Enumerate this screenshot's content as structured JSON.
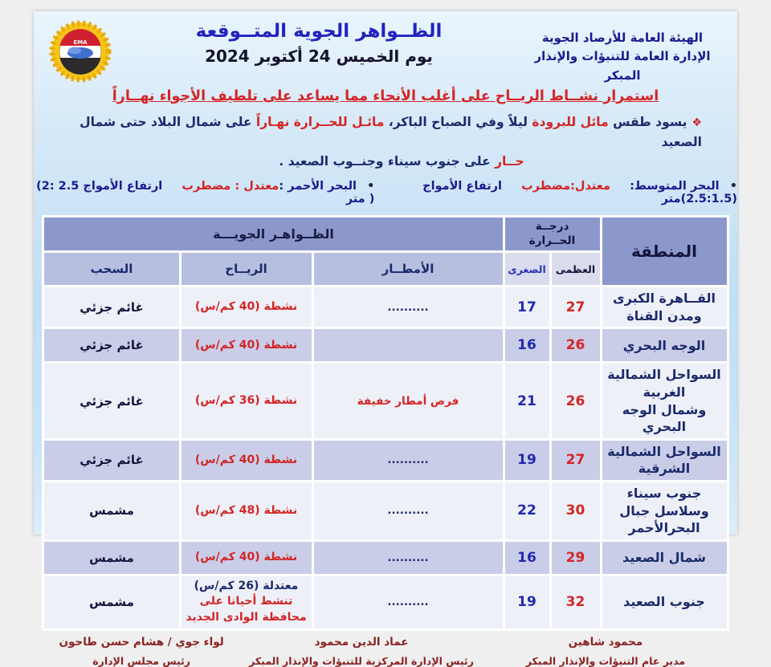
{
  "header": {
    "agency_line1": "الهيئة العامة للأرصاد الجوية",
    "agency_line2": "الإدارة العامة للتنبؤات والإنذار المبكر",
    "title": "الظــواهر الجوية المتــوقعة",
    "date": "يوم  الخميس 24 أكتوبر 2024",
    "logo_text": "EMA"
  },
  "headline": "استمرار نشــاط الريــاح على أغلب الأنحاء مما يساعد على تلطيف الأجواء نهــاراً",
  "summary": {
    "bullet": "❖",
    "seg1": "يسود طقس ",
    "seg2": "مائل للبرودة ",
    "seg3": "ليلاً وفي الصباح الباكر، ",
    "seg4": "مائـل للحــرارة نهـاراً ",
    "seg5": "على شمال البلاد حتى شمال الصعيد",
    "seg6": "حــار ",
    "seg7": "على جنوب سيناء وجنــوب الصعيد ."
  },
  "sea": {
    "mediterranean": {
      "bullet": "•",
      "label": "البحر المتوسط:",
      "state": "معتدل:مضطرب",
      "waves_label": "ارتفاع الأمواج",
      "waves_range": "(2.5:1.5)",
      "waves_unit": "متر"
    },
    "red_sea": {
      "bullet": "•",
      "label": "البحر الأحمر :",
      "state": "معتدل : مضطرب",
      "waves_label": "ارتفاع الأمواج",
      "waves_range": "(2: 2.5 )",
      "waves_unit": "متر"
    }
  },
  "table": {
    "header": {
      "region": "المنطقة",
      "temp_line1": "درجــة",
      "temp_line2": "الحــرارة",
      "max": "العظمى",
      "min": "الصغرى",
      "phenomena": "الظــواهـر الجويـــة",
      "rain": "الأمطــار",
      "wind": "الريــاح",
      "clouds": "السحب"
    },
    "rows": [
      {
        "region_lines": [
          "القــاهرة الكبرى",
          "ومدن القناة"
        ],
        "max": "27",
        "min": "17",
        "rain": {
          "text": "..........",
          "color": "#1b2a6b"
        },
        "wind": [
          {
            "text": "نشطة (40 كم/س)",
            "color": "#d42525"
          }
        ],
        "clouds": "غائم جزئي"
      },
      {
        "region_lines": [
          "الوجه البحري"
        ],
        "max": "26",
        "min": "16",
        "rain": {
          "text": "",
          "color": "#1b2a6b"
        },
        "wind": [
          {
            "text": "نشطة (40 كم/س)",
            "color": "#d42525"
          }
        ],
        "clouds": "غائم جزئي"
      },
      {
        "region_lines": [
          "السواحل الشمالية الغربية",
          "وشمال الوجه البحري"
        ],
        "max": "26",
        "min": "21",
        "rain": {
          "text": "فرص أمطار خفيفة",
          "color": "#d42525"
        },
        "wind": [
          {
            "text": "نشطة (36 كم/س)",
            "color": "#d42525"
          }
        ],
        "clouds": "غائم جزئي"
      },
      {
        "region_lines": [
          "السواحل الشمالية الشرقية"
        ],
        "max": "27",
        "min": "19",
        "rain": {
          "text": "..........",
          "color": "#1b2a6b"
        },
        "wind": [
          {
            "text": "نشطة (40 كم/س)",
            "color": "#d42525"
          }
        ],
        "clouds": "غائم جزئي"
      },
      {
        "region_lines": [
          "جنوب سيناء",
          "وسلاسل جبال البحرالأحمر"
        ],
        "max": "30",
        "min": "22",
        "rain": {
          "text": "..........",
          "color": "#1b2a6b"
        },
        "wind": [
          {
            "text": "نشطة (48 كم/س)",
            "color": "#d42525"
          }
        ],
        "clouds": "مشمس"
      },
      {
        "region_lines": [
          "شمال الصعيد"
        ],
        "max": "29",
        "min": "16",
        "rain": {
          "text": "..........",
          "color": "#1b2a6b"
        },
        "wind": [
          {
            "text": "نشطة (40 كم/س)",
            "color": "#d42525"
          }
        ],
        "clouds": "مشمس"
      },
      {
        "region_lines": [
          "جنوب الصعيد"
        ],
        "max": "32",
        "min": "19",
        "rain": {
          "text": "..........",
          "color": "#1b2a6b"
        },
        "wind": [
          {
            "text": "معتدلة (26 كم/س)",
            "color": "#1b2a6b"
          },
          {
            "text": "تنشط أحيانا على محافظة الوادى الجديد",
            "color": "#d42525"
          }
        ],
        "clouds": "مشمس"
      }
    ]
  },
  "footer": {
    "signatures": [
      {
        "name": "محمود شاهين",
        "title": "مدير عام التنبؤات والإنذار المبكر"
      },
      {
        "name": "عماد الدين محمود",
        "title": "رئيس الإدارة المركزية للتنبؤات والإنذار المبكر"
      },
      {
        "name": "لواء جوي / هشام حسن طاحون",
        "title": "رئيس مجلس الإدارة"
      }
    ]
  },
  "colors": {
    "title_blue": "#2323c0",
    "navy": "#1b2a6b",
    "red": "#d42525",
    "maroon": "#8b2222",
    "header_bg": "#8c98cc",
    "subheader_bg": "#b6bfe0",
    "row_light": "#eef0f8",
    "row_alt": "#c9cde8"
  }
}
